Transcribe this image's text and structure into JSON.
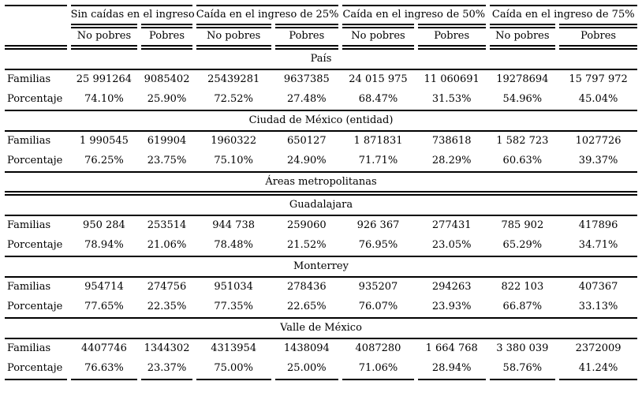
{
  "chart_data": {
    "type": "table",
    "column_groups": [
      "Sin caídas en el ingreso",
      "Caída en el ingreso de 25%",
      "Caída en el ingreso de 50%",
      "Caída en el ingreso de 75%"
    ],
    "sub_columns": [
      "No pobres",
      "Pobres"
    ],
    "sections": [
      {
        "title": "País",
        "rows": [
          {
            "label": "Familias",
            "values": [
              "25 991264",
              "9085402",
              "25439281",
              "9637385",
              "24 015 975",
              "11 060691",
              "19278694",
              "15 797 972"
            ]
          },
          {
            "label": "Porcentaje",
            "values": [
              "74.10%",
              "25.90%",
              "72.52%",
              "27.48%",
              "68.47%",
              "31.53%",
              "54.96%",
              "45.04%"
            ]
          }
        ]
      },
      {
        "title": "Ciudad de México (entidad)",
        "rows": [
          {
            "label": "Familias",
            "values": [
              "1 990545",
              "619904",
              "1960322",
              "650127",
              "1 871831",
              "738618",
              "1 582 723",
              "1027726"
            ]
          },
          {
            "label": "Porcentaje",
            "values": [
              "76.25%",
              "23.75%",
              "75.10%",
              "24.90%",
              "71.71%",
              "28.29%",
              "60.63%",
              "39.37%"
            ]
          }
        ]
      },
      {
        "title": "Áreas metropolitanas",
        "rows": []
      },
      {
        "title": "Guadalajara",
        "rows": [
          {
            "label": "Familias",
            "values": [
              "950 284",
              "253514",
              "944 738",
              "259060",
              "926 367",
              "277431",
              "785 902",
              "417896"
            ]
          },
          {
            "label": "Porcentaje",
            "values": [
              "78.94%",
              "21.06%",
              "78.48%",
              "21.52%",
              "76.95%",
              "23.05%",
              "65.29%",
              "34.71%"
            ]
          }
        ]
      },
      {
        "title": "Monterrey",
        "rows": [
          {
            "label": "Familias",
            "values": [
              "954714",
              "274756",
              "951034",
              "278436",
              "935207",
              "294263",
              "822 103",
              "407367"
            ]
          },
          {
            "label": "Porcentaje",
            "values": [
              "77.65%",
              "22.35%",
              "77.35%",
              "22.65%",
              "76.07%",
              "23.93%",
              "66.87%",
              "33.13%"
            ]
          }
        ]
      },
      {
        "title": "Valle de México",
        "rows": [
          {
            "label": "Familias",
            "values": [
              "4407746",
              "1344302",
              "4313954",
              "1438094",
              "4087280",
              "1 664 768",
              "3 380 039",
              "2372009"
            ]
          },
          {
            "label": "Porcentaje",
            "values": [
              "76.63%",
              "23.37%",
              "75.00%",
              "25.00%",
              "71.06%",
              "28.94%",
              "58.76%",
              "41.24%"
            ]
          }
        ]
      }
    ]
  }
}
